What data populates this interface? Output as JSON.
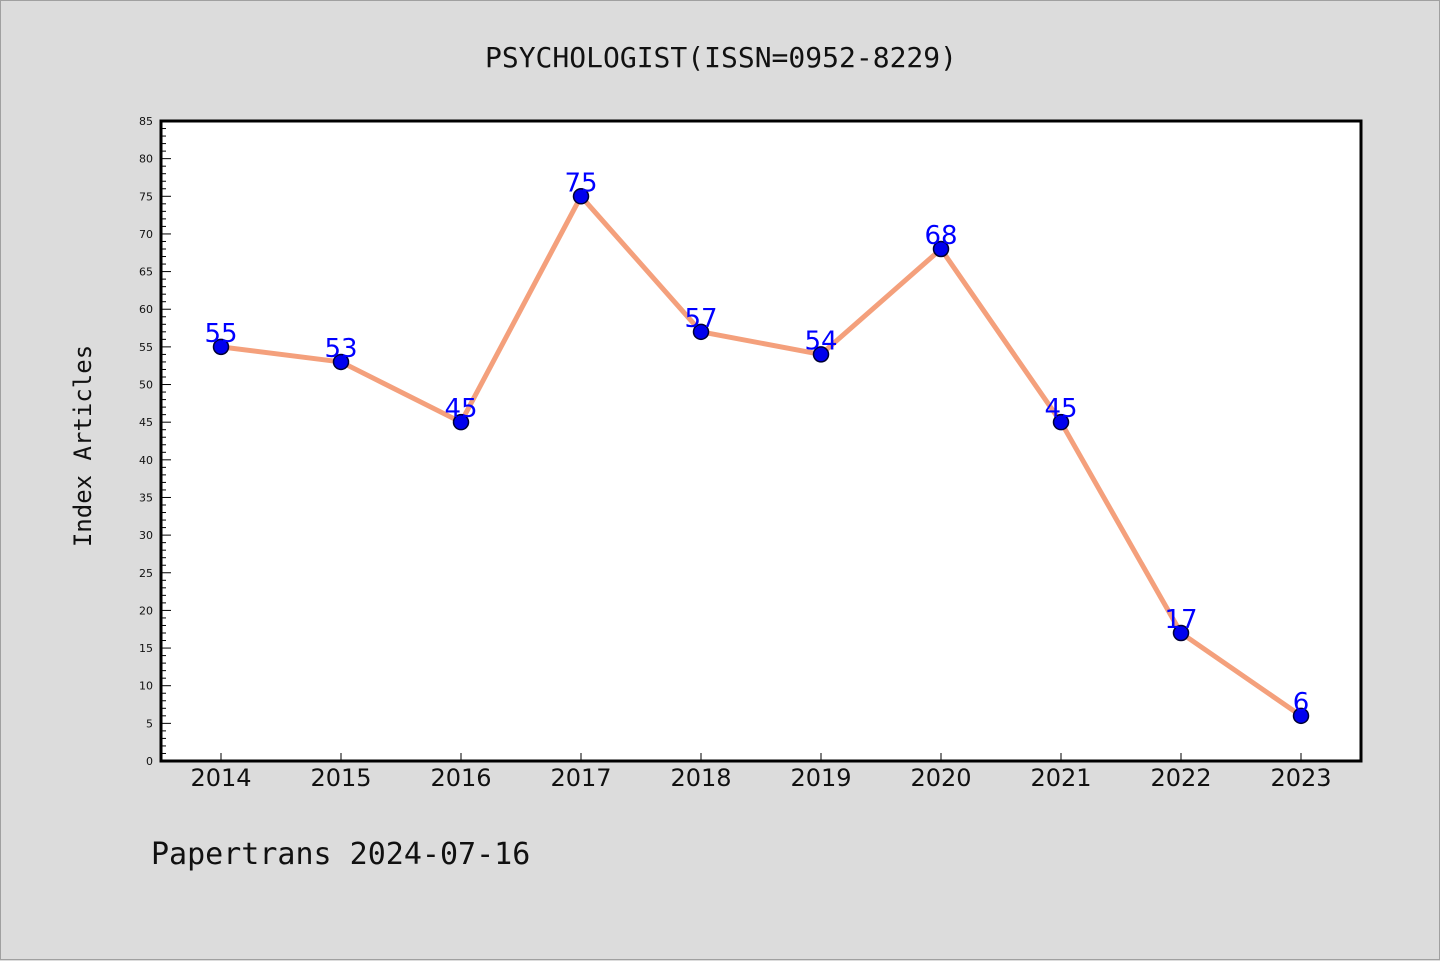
{
  "footer": "Papertrans 2024-07-16",
  "chart_data": {
    "type": "line",
    "title": "PSYCHOLOGIST(ISSN=0952-8229)",
    "ylabel": "Index Articles",
    "xlabel": "",
    "categories": [
      "2014",
      "2015",
      "2016",
      "2017",
      "2018",
      "2019",
      "2020",
      "2021",
      "2022",
      "2023"
    ],
    "series": [
      {
        "values": [
          55,
          53,
          45,
          75,
          57,
          54,
          68,
          45,
          17,
          6
        ]
      }
    ],
    "ylim": [
      0,
      85
    ],
    "y_major_step": 5,
    "y_minor_step": 1,
    "grid": false,
    "data_labels": true,
    "colors": {
      "line": "#f4a07c",
      "marker": "#0000ee",
      "marker_edge": "#000033",
      "data_label": "#0000ff",
      "plot_bg": "#ffffff",
      "page_bg": "#dcdcdc"
    }
  }
}
